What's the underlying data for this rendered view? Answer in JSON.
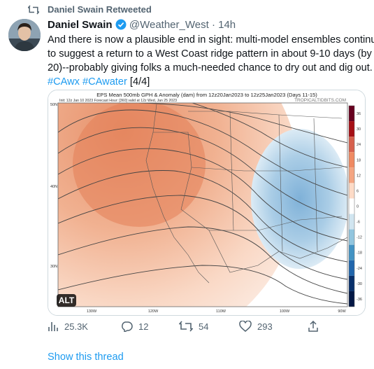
{
  "retweet": {
    "label": "Daniel Swain Retweeted"
  },
  "tweet": {
    "author": "Daniel Swain",
    "handle": "@Weather_West",
    "separator": "·",
    "time": "14h",
    "lines": [
      "And there is now a plausible end in sight: multi-model ensembles continue",
      "to suggest a return to a West Coast ridge pattern in about 9-10 days (by Jan",
      "20)--probably giving folks a much-needed chance to dry out and dig out."
    ],
    "hashtags": [
      "#CAwx",
      "#CAwater"
    ],
    "suffix": "[4/4]"
  },
  "image": {
    "title": "EPS Mean 500mb GPH & Anomaly (dam) from 12z20Jan2023 to 12z25Jan2023 (Days 11-15)",
    "subtitle": "Init: 12z Jan 10 2023   Forecast Hour: [360]   valid at 12z Wed, Jan 25 2023",
    "watermark": "TROPICALTIDBITS.COM",
    "lat_labels": [
      "50N",
      "40N",
      "30N"
    ],
    "lon_labels": [
      "130W",
      "120W",
      "110W",
      "100W",
      "90W"
    ],
    "colorbar_labels": [
      "36",
      "30",
      "24",
      "18",
      "12",
      "6",
      "0",
      "-6",
      "-12",
      "-18",
      "-24",
      "-30",
      "-36"
    ],
    "alt": "ALT"
  },
  "actions": {
    "views": "25.3K",
    "replies": "12",
    "retweets": "54",
    "likes": "293"
  },
  "footer": {
    "show_thread": "Show this thread"
  }
}
